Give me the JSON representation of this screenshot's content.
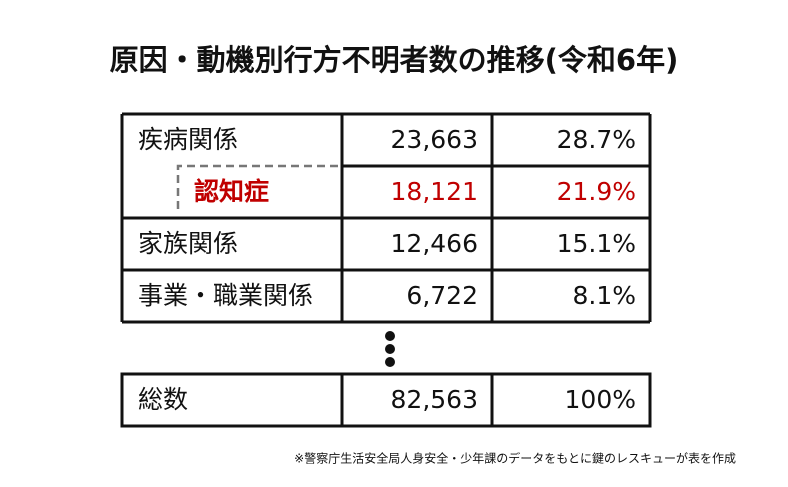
{
  "header": {
    "title": "原因・動機別行方不明者数の推移(令和6年)"
  },
  "table": {
    "rows": [
      [
        "疾病関係",
        "23,663",
        "28.7%"
      ],
      [
        "認知症",
        "18,121",
        "21.9%"
      ],
      [
        "家族関係",
        "12,466",
        "15.1%"
      ],
      [
        "事業・職業関係",
        "6,722",
        "8.1%"
      ]
    ],
    "total": [
      "総数",
      "82,563",
      "100%"
    ]
  },
  "footer": {
    "note": "※警察庁生活安全局人身安全・少年課のデータをもとに鍵のレスキューが表を作成"
  }
}
